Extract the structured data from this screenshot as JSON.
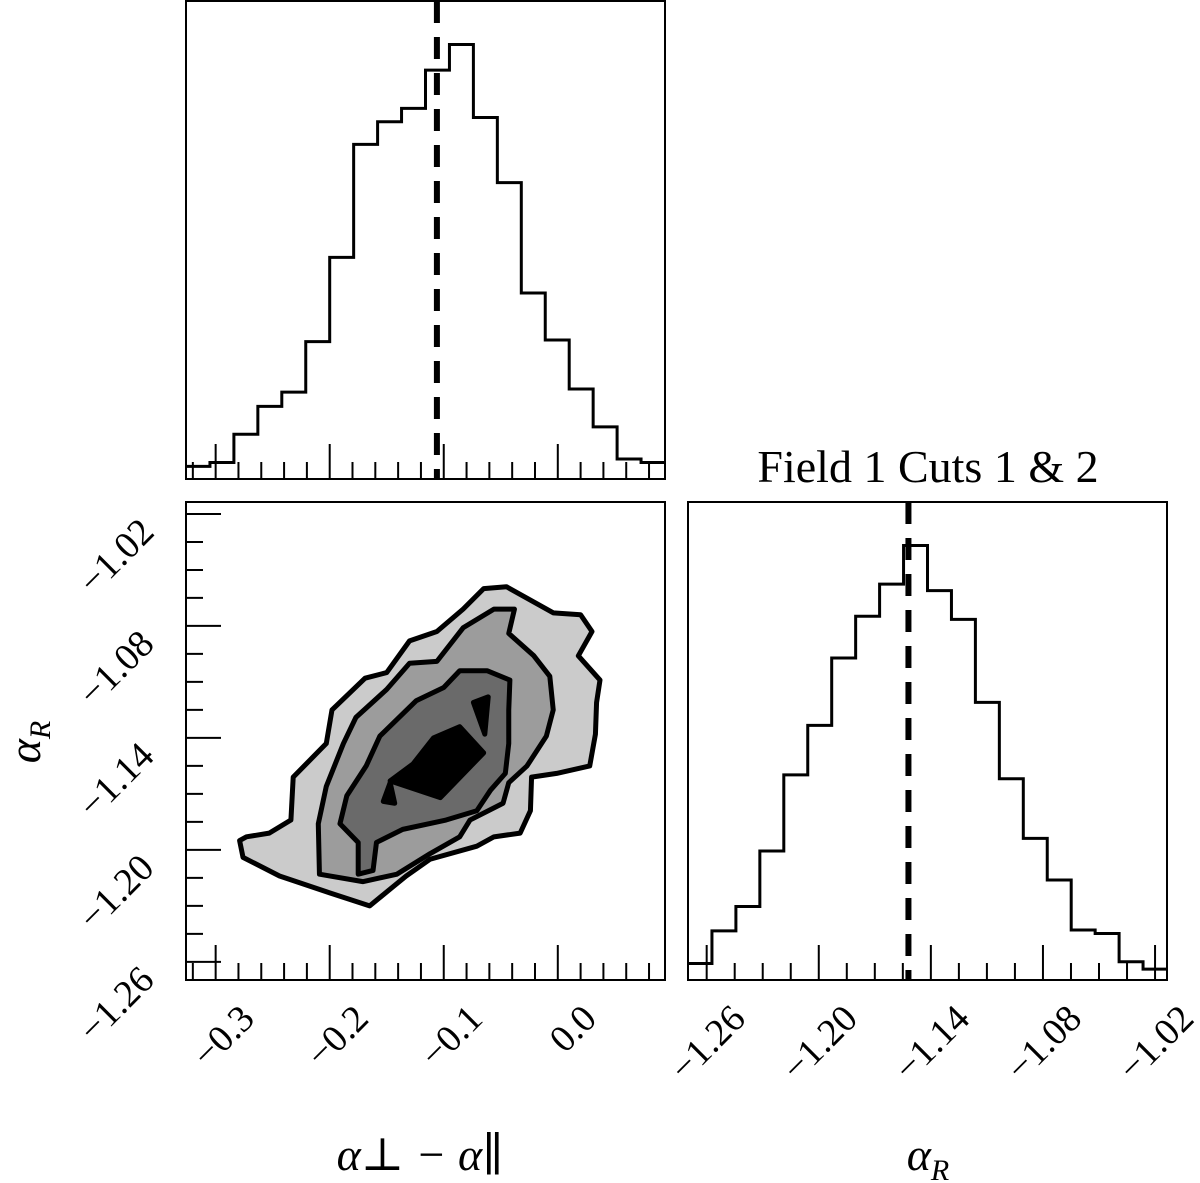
{
  "title": "Field 1 Cuts 1 & 2",
  "colors": {
    "line": "#000000",
    "level1": "#cbcbcb",
    "level2": "#9c9c9c",
    "level3": "#6a6a6a",
    "level4": "#000000"
  },
  "chart_data": [
    {
      "type": "histogram",
      "panel": "top-left",
      "xlim": [
        -0.326,
        0.094
      ],
      "ylim": [
        0,
        1.1
      ],
      "bins": 20,
      "values": [
        0.029,
        0.038,
        0.103,
        0.167,
        0.2,
        0.316,
        0.51,
        0.77,
        0.822,
        0.853,
        0.941,
        1,
        0.832,
        0.682,
        0.428,
        0.32,
        0.207,
        0.12,
        0.046,
        0.038
      ],
      "marker_line": -0.106,
      "x_major_ticks": [
        -0.3,
        -0.2,
        -0.1,
        0.0
      ],
      "x_minor_step": 0.02
    },
    {
      "type": "contour",
      "panel": "bottom-left",
      "xlim": [
        -0.326,
        0.094
      ],
      "ylim": [
        -1.2697,
        -1.0136
      ],
      "xlabel": {
        "main": "α⊥ − α∥"
      },
      "ylabel": {
        "main": "α",
        "sub": "R"
      },
      "x_tick_labels": [
        "−0.3",
        "−0.2",
        "−0.1",
        "0.0"
      ],
      "x_major_ticks": [
        -0.3,
        -0.2,
        -0.1,
        0.0
      ],
      "x_minor_step": 0.02,
      "y_tick_labels": [
        "−1.02",
        "−1.08",
        "−1.14",
        "−1.20",
        "−1.26"
      ],
      "y_major_ticks": [
        -1.02,
        -1.08,
        -1.14,
        -1.2,
        -1.26
      ],
      "y_minor_step": 0.015,
      "levels": [
        {
          "level": 1,
          "polygons": [
            [
              [
                -0.065,
                -1.06
              ],
              [
                -0.045,
                -1.059
              ],
              [
                -0.004,
                -1.073
              ],
              [
                0.02,
                -1.074
              ],
              [
                0.03,
                -1.083
              ],
              [
                0.018,
                -1.096
              ],
              [
                0.037,
                -1.109
              ],
              [
                0.034,
                -1.121
              ],
              [
                0.033,
                -1.138
              ],
              [
                0.028,
                -1.155
              ],
              [
                -0.001,
                -1.159
              ],
              [
                -0.023,
                -1.161
              ],
              [
                -0.024,
                -1.179
              ],
              [
                -0.033,
                -1.191
              ],
              [
                -0.056,
                -1.193
              ],
              [
                -0.071,
                -1.198
              ],
              [
                -0.112,
                -1.205
              ],
              [
                -0.133,
                -1.214
              ],
              [
                -0.165,
                -1.23
              ],
              [
                -0.2,
                -1.223
              ],
              [
                -0.244,
                -1.214
              ],
              [
                -0.276,
                -1.204
              ],
              [
                -0.279,
                -1.195
              ],
              [
                -0.273,
                -1.193
              ],
              [
                -0.253,
                -1.191
              ],
              [
                -0.234,
                -1.184
              ],
              [
                -0.232,
                -1.161
              ],
              [
                -0.203,
                -1.143
              ],
              [
                -0.198,
                -1.125
              ],
              [
                -0.169,
                -1.108
              ],
              [
                -0.15,
                -1.105
              ],
              [
                -0.13,
                -1.088
              ],
              [
                -0.106,
                -1.083
              ],
              [
                -0.083,
                -1.071
              ]
            ]
          ]
        },
        {
          "level": 2,
          "polygons": [
            [
              [
                -0.056,
                -1.071
              ],
              [
                -0.038,
                -1.071
              ],
              [
                -0.043,
                -1.084
              ],
              [
                -0.021,
                -1.096
              ],
              [
                -0.007,
                -1.107
              ],
              [
                -0.004,
                -1.125
              ],
              [
                -0.01,
                -1.139
              ],
              [
                -0.027,
                -1.155
              ],
              [
                -0.043,
                -1.164
              ],
              [
                -0.048,
                -1.175
              ],
              [
                -0.077,
                -1.184
              ],
              [
                -0.086,
                -1.193
              ],
              [
                -0.112,
                -1.202
              ],
              [
                -0.141,
                -1.213
              ],
              [
                -0.171,
                -1.217
              ],
              [
                -0.209,
                -1.213
              ],
              [
                -0.21,
                -1.186
              ],
              [
                -0.203,
                -1.166
              ],
              [
                -0.188,
                -1.143
              ],
              [
                -0.177,
                -1.129
              ],
              [
                -0.15,
                -1.114
              ],
              [
                -0.13,
                -1.1
              ],
              [
                -0.106,
                -1.099
              ],
              [
                -0.083,
                -1.081
              ]
            ]
          ]
        },
        {
          "level": 3,
          "polygons": [
            [
              [
                -0.086,
                -1.104
              ],
              [
                -0.062,
                -1.104
              ],
              [
                -0.042,
                -1.109
              ],
              [
                -0.043,
                -1.125
              ],
              [
                -0.043,
                -1.143
              ],
              [
                -0.046,
                -1.159
              ],
              [
                -0.059,
                -1.168
              ],
              [
                -0.071,
                -1.179
              ],
              [
                -0.098,
                -1.184
              ],
              [
                -0.136,
                -1.189
              ],
              [
                -0.159,
                -1.196
              ],
              [
                -0.162,
                -1.211
              ],
              [
                -0.175,
                -1.213
              ],
              [
                -0.175,
                -1.196
              ],
              [
                -0.191,
                -1.186
              ],
              [
                -0.185,
                -1.171
              ],
              [
                -0.168,
                -1.155
              ],
              [
                -0.156,
                -1.139
              ],
              [
                -0.124,
                -1.12
              ],
              [
                -0.1,
                -1.113
              ]
            ]
          ]
        },
        {
          "level": 4,
          "polygons": [
            [
              [
                -0.086,
                -1.134
              ],
              [
                -0.065,
                -1.148
              ],
              [
                -0.103,
                -1.172
              ],
              [
                -0.147,
                -1.163
              ],
              [
                -0.127,
                -1.154
              ],
              [
                -0.109,
                -1.14
              ]
            ],
            [
              [
                -0.074,
                -1.121
              ],
              [
                -0.061,
                -1.118
              ],
              [
                -0.064,
                -1.138
              ]
            ],
            [
              [
                -0.147,
                -1.164
              ],
              [
                -0.143,
                -1.175
              ],
              [
                -0.153,
                -1.174
              ]
            ]
          ]
        }
      ]
    },
    {
      "type": "histogram",
      "panel": "bottom-right",
      "title": "Field 1 Cuts 1 & 2",
      "xlim": [
        -1.27,
        -1.0136
      ],
      "ylim": [
        0,
        1.1
      ],
      "bins": 20,
      "values": [
        0.038,
        0.113,
        0.169,
        0.297,
        0.472,
        0.586,
        0.741,
        0.837,
        0.911,
        1,
        0.896,
        0.83,
        0.639,
        0.463,
        0.326,
        0.23,
        0.115,
        0.107,
        0.042,
        0.025
      ],
      "marker_line": -1.152,
      "xlabel": {
        "main": "α",
        "sub": "R"
      },
      "x_tick_labels": [
        "−1.26",
        "−1.20",
        "−1.14",
        "−1.08",
        "−1.02"
      ],
      "x_major_ticks": [
        -1.26,
        -1.2,
        -1.14,
        -1.08,
        -1.02
      ],
      "x_minor_step": 0.015
    }
  ]
}
